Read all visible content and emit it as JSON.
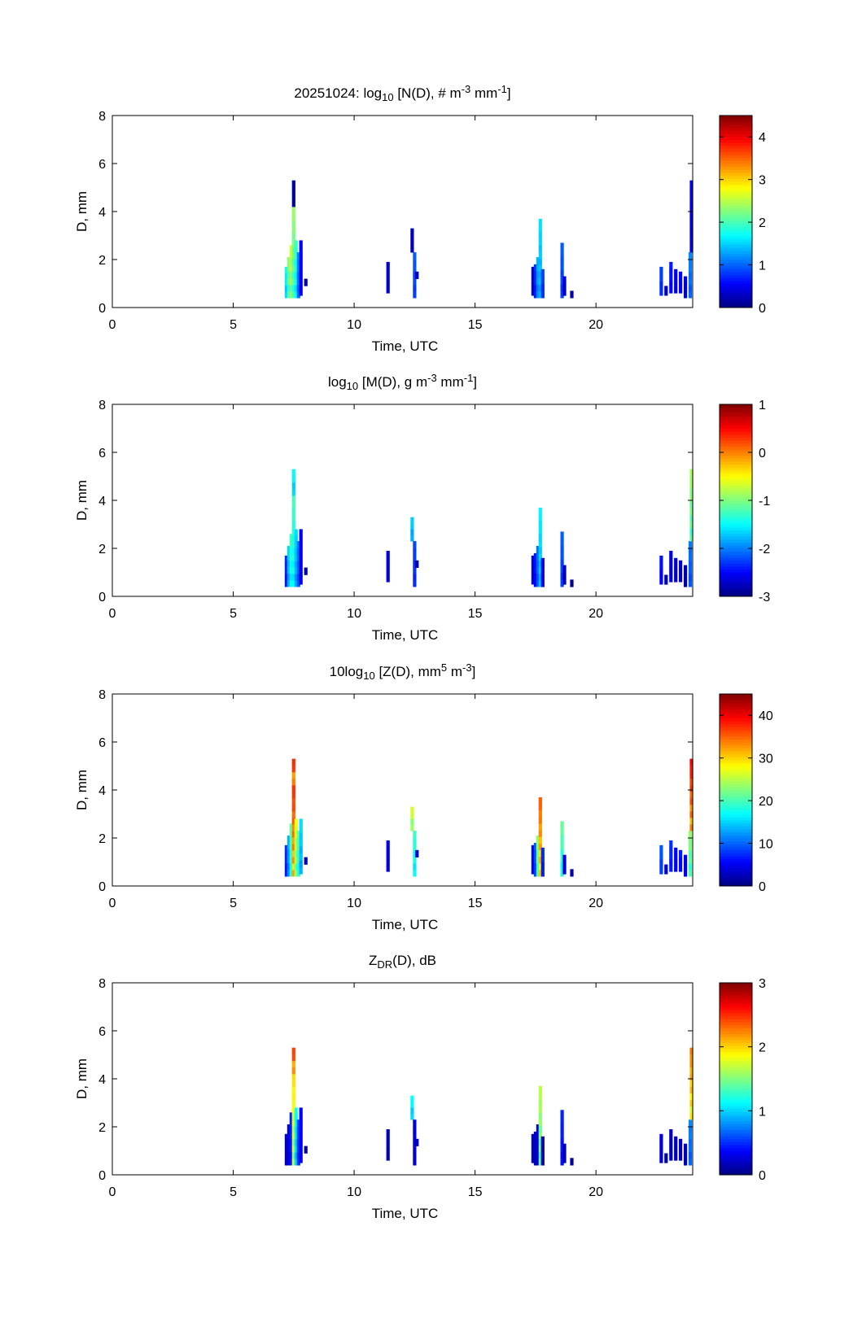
{
  "figure": {
    "background": "#ffffff"
  },
  "chart_data": [
    {
      "type": "heatmap",
      "title": {
        "parts": [
          "20251024: log",
          "10",
          " [N(D), # m",
          "-3",
          " mm",
          "-1",
          "]"
        ],
        "styles": [
          "n",
          "sub",
          "n",
          "sup",
          "n",
          "sup",
          "n"
        ]
      },
      "xlabel": "Time, UTC",
      "ylabel": "D, mm",
      "xlim": [
        0,
        24
      ],
      "ylim": [
        0,
        8
      ],
      "xticks": [
        0,
        5,
        10,
        15,
        20
      ],
      "yticks": [
        0,
        2,
        4,
        6,
        8
      ],
      "colorbar": {
        "range": [
          0,
          4.5
        ],
        "ticks": [
          0,
          1,
          2,
          3,
          4
        ]
      },
      "cells": [
        {
          "t": 7.2,
          "d0": 0.4,
          "d1": 1.7,
          "c": 1.8
        },
        {
          "t": 7.3,
          "d0": 0.4,
          "d1": 2.1,
          "c": 2.4
        },
        {
          "t": 7.4,
          "d0": 0.4,
          "d1": 2.6,
          "c": 2.7
        },
        {
          "t": 7.5,
          "d0": 0.4,
          "d1": 4.2,
          "c": 2.4
        },
        {
          "t": 7.5,
          "d0": 4.2,
          "d1": 5.3,
          "c": 0.2
        },
        {
          "t": 7.6,
          "d0": 0.4,
          "d1": 2.8,
          "c": 2.0
        },
        {
          "t": 7.7,
          "d0": 0.4,
          "d1": 2.3,
          "c": 1.2
        },
        {
          "t": 7.8,
          "d0": 0.5,
          "d1": 2.8,
          "c": 0.6
        },
        {
          "t": 8.0,
          "d0": 0.9,
          "d1": 1.2,
          "c": 0.2
        },
        {
          "t": 11.4,
          "d0": 0.6,
          "d1": 1.9,
          "c": 0.4
        },
        {
          "t": 12.4,
          "d0": 2.3,
          "d1": 3.3,
          "c": 0.3
        },
        {
          "t": 12.5,
          "d0": 0.4,
          "d1": 2.3,
          "c": 1.0
        },
        {
          "t": 12.6,
          "d0": 1.2,
          "d1": 1.5,
          "c": 0.3
        },
        {
          "t": 17.4,
          "d0": 0.5,
          "d1": 1.7,
          "c": 0.4
        },
        {
          "t": 17.5,
          "d0": 0.4,
          "d1": 1.8,
          "c": 0.8
        },
        {
          "t": 17.6,
          "d0": 0.4,
          "d1": 2.1,
          "c": 1.4
        },
        {
          "t": 17.7,
          "d0": 0.4,
          "d1": 3.7,
          "c": 1.6
        },
        {
          "t": 17.8,
          "d0": 0.4,
          "d1": 1.6,
          "c": 0.9
        },
        {
          "t": 18.6,
          "d0": 0.4,
          "d1": 2.7,
          "c": 1.0
        },
        {
          "t": 18.7,
          "d0": 0.5,
          "d1": 1.3,
          "c": 0.4
        },
        {
          "t": 19.0,
          "d0": 0.4,
          "d1": 0.7,
          "c": 0.2
        },
        {
          "t": 22.7,
          "d0": 0.5,
          "d1": 1.7,
          "c": 0.9
        },
        {
          "t": 22.9,
          "d0": 0.5,
          "d1": 0.9,
          "c": 0.3
        },
        {
          "t": 23.1,
          "d0": 0.6,
          "d1": 1.9,
          "c": 0.7
        },
        {
          "t": 23.3,
          "d0": 0.6,
          "d1": 1.6,
          "c": 0.5
        },
        {
          "t": 23.5,
          "d0": 0.6,
          "d1": 1.5,
          "c": 0.6
        },
        {
          "t": 23.7,
          "d0": 0.4,
          "d1": 1.3,
          "c": 0.4
        },
        {
          "t": 23.9,
          "d0": 0.4,
          "d1": 2.3,
          "c": 1.2
        },
        {
          "t": 23.95,
          "d0": 2.3,
          "d1": 5.3,
          "c": 0.6
        }
      ]
    },
    {
      "type": "heatmap",
      "title": {
        "parts": [
          "log",
          "10",
          " [M(D), g m",
          "-3",
          " mm",
          "-1",
          "]"
        ],
        "styles": [
          "n",
          "sub",
          "n",
          "sup",
          "n",
          "sup",
          "n"
        ]
      },
      "xlabel": "Time, UTC",
      "ylabel": "D, mm",
      "xlim": [
        0,
        24
      ],
      "ylim": [
        0,
        8
      ],
      "xticks": [
        0,
        5,
        10,
        15,
        20
      ],
      "yticks": [
        0,
        2,
        4,
        6,
        8
      ],
      "colorbar": {
        "range": [
          -3,
          1
        ],
        "ticks": [
          -3,
          -2,
          -1,
          0,
          1
        ]
      },
      "cells": [
        {
          "t": 7.2,
          "d0": 0.4,
          "d1": 1.7,
          "c": -2.3
        },
        {
          "t": 7.3,
          "d0": 0.4,
          "d1": 2.1,
          "c": -1.6
        },
        {
          "t": 7.4,
          "d0": 0.4,
          "d1": 2.6,
          "c": -1.2
        },
        {
          "t": 7.5,
          "d0": 0.4,
          "d1": 4.2,
          "c": -1.2
        },
        {
          "t": 7.5,
          "d0": 4.2,
          "d1": 5.3,
          "c": -1.4
        },
        {
          "t": 7.6,
          "d0": 0.4,
          "d1": 2.8,
          "c": -1.6
        },
        {
          "t": 7.7,
          "d0": 0.4,
          "d1": 2.3,
          "c": -2.0
        },
        {
          "t": 7.8,
          "d0": 0.5,
          "d1": 2.8,
          "c": -2.5
        },
        {
          "t": 8.0,
          "d0": 0.9,
          "d1": 1.2,
          "c": -2.8
        },
        {
          "t": 11.4,
          "d0": 0.6,
          "d1": 1.9,
          "c": -2.6
        },
        {
          "t": 12.4,
          "d0": 2.3,
          "d1": 3.3,
          "c": -1.6
        },
        {
          "t": 12.5,
          "d0": 0.4,
          "d1": 2.3,
          "c": -2.2
        },
        {
          "t": 12.6,
          "d0": 1.2,
          "d1": 1.5,
          "c": -2.8
        },
        {
          "t": 17.4,
          "d0": 0.5,
          "d1": 1.7,
          "c": -2.6
        },
        {
          "t": 17.5,
          "d0": 0.4,
          "d1": 1.8,
          "c": -2.4
        },
        {
          "t": 17.6,
          "d0": 0.4,
          "d1": 2.1,
          "c": -2.0
        },
        {
          "t": 17.7,
          "d0": 0.4,
          "d1": 3.7,
          "c": -1.5
        },
        {
          "t": 17.8,
          "d0": 0.4,
          "d1": 1.6,
          "c": -2.5
        },
        {
          "t": 18.6,
          "d0": 0.4,
          "d1": 2.7,
          "c": -2.1
        },
        {
          "t": 18.7,
          "d0": 0.5,
          "d1": 1.3,
          "c": -2.7
        },
        {
          "t": 19.0,
          "d0": 0.4,
          "d1": 0.7,
          "c": -2.9
        },
        {
          "t": 22.7,
          "d0": 0.5,
          "d1": 1.7,
          "c": -2.4
        },
        {
          "t": 22.9,
          "d0": 0.5,
          "d1": 0.9,
          "c": -2.8
        },
        {
          "t": 23.1,
          "d0": 0.6,
          "d1": 1.9,
          "c": -2.6
        },
        {
          "t": 23.3,
          "d0": 0.6,
          "d1": 1.6,
          "c": -2.7
        },
        {
          "t": 23.5,
          "d0": 0.6,
          "d1": 1.5,
          "c": -2.7
        },
        {
          "t": 23.7,
          "d0": 0.4,
          "d1": 1.3,
          "c": -2.8
        },
        {
          "t": 23.9,
          "d0": 0.4,
          "d1": 2.3,
          "c": -2.0
        },
        {
          "t": 23.95,
          "d0": 2.3,
          "d1": 5.3,
          "c": -0.8
        }
      ]
    },
    {
      "type": "heatmap",
      "title": {
        "parts": [
          "10log",
          "10",
          " [Z(D),  mm",
          "5",
          " m",
          "-3",
          "]"
        ],
        "styles": [
          "n",
          "sub",
          "n",
          "sup",
          "n",
          "sup",
          "n"
        ]
      },
      "xlabel": "Time, UTC",
      "ylabel": "D, mm",
      "xlim": [
        0,
        24
      ],
      "ylim": [
        0,
        8
      ],
      "xticks": [
        0,
        5,
        10,
        15,
        20
      ],
      "yticks": [
        0,
        2,
        4,
        6,
        8
      ],
      "colorbar": {
        "range": [
          0,
          45
        ],
        "ticks": [
          0,
          10,
          20,
          30,
          40
        ]
      },
      "cells": [
        {
          "t": 7.2,
          "d0": 0.4,
          "d1": 1.7,
          "c": 8
        },
        {
          "t": 7.3,
          "d0": 0.4,
          "d1": 2.1,
          "c": 14
        },
        {
          "t": 7.4,
          "d0": 0.4,
          "d1": 2.6,
          "c": 22
        },
        {
          "t": 7.5,
          "d0": 0.4,
          "d1": 4.2,
          "c": 38
        },
        {
          "t": 7.5,
          "d0": 4.2,
          "d1": 5.3,
          "c": 40
        },
        {
          "t": 7.6,
          "d0": 0.4,
          "d1": 2.8,
          "c": 28
        },
        {
          "t": 7.7,
          "d0": 0.4,
          "d1": 2.3,
          "c": 22
        },
        {
          "t": 7.8,
          "d0": 0.5,
          "d1": 2.8,
          "c": 16
        },
        {
          "t": 8.0,
          "d0": 0.9,
          "d1": 1.2,
          "c": 3
        },
        {
          "t": 11.4,
          "d0": 0.6,
          "d1": 1.9,
          "c": 5
        },
        {
          "t": 12.4,
          "d0": 2.3,
          "d1": 3.3,
          "c": 28
        },
        {
          "t": 12.5,
          "d0": 0.4,
          "d1": 2.3,
          "c": 20
        },
        {
          "t": 12.6,
          "d0": 1.2,
          "d1": 1.5,
          "c": 4
        },
        {
          "t": 17.4,
          "d0": 0.5,
          "d1": 1.7,
          "c": 6
        },
        {
          "t": 17.5,
          "d0": 0.4,
          "d1": 1.8,
          "c": 10
        },
        {
          "t": 17.6,
          "d0": 0.4,
          "d1": 2.1,
          "c": 24
        },
        {
          "t": 17.7,
          "d0": 0.4,
          "d1": 3.7,
          "c": 36
        },
        {
          "t": 17.8,
          "d0": 0.4,
          "d1": 1.6,
          "c": 8
        },
        {
          "t": 18.6,
          "d0": 0.4,
          "d1": 2.7,
          "c": 22
        },
        {
          "t": 18.7,
          "d0": 0.5,
          "d1": 1.3,
          "c": 5
        },
        {
          "t": 19.0,
          "d0": 0.4,
          "d1": 0.7,
          "c": 2
        },
        {
          "t": 22.7,
          "d0": 0.5,
          "d1": 1.7,
          "c": 10
        },
        {
          "t": 22.9,
          "d0": 0.5,
          "d1": 0.9,
          "c": 4
        },
        {
          "t": 23.1,
          "d0": 0.6,
          "d1": 1.9,
          "c": 8
        },
        {
          "t": 23.3,
          "d0": 0.6,
          "d1": 1.6,
          "c": 6
        },
        {
          "t": 23.5,
          "d0": 0.6,
          "d1": 1.5,
          "c": 7
        },
        {
          "t": 23.7,
          "d0": 0.4,
          "d1": 1.3,
          "c": 5
        },
        {
          "t": 23.9,
          "d0": 0.4,
          "d1": 2.3,
          "c": 24
        },
        {
          "t": 23.95,
          "d0": 2.3,
          "d1": 5.3,
          "c": 40
        }
      ]
    },
    {
      "type": "heatmap",
      "title": {
        "parts": [
          "Z",
          "DR",
          "(D), dB"
        ],
        "styles": [
          "n",
          "sub",
          "n"
        ]
      },
      "xlabel": "Time, UTC",
      "ylabel": "D, mm",
      "xlim": [
        0,
        24
      ],
      "ylim": [
        0,
        8
      ],
      "xticks": [
        0,
        5,
        10,
        15,
        20
      ],
      "yticks": [
        0,
        2,
        4,
        6,
        8
      ],
      "colorbar": {
        "range": [
          0,
          3
        ],
        "ticks": [
          0,
          1,
          2,
          3
        ]
      },
      "cells": [
        {
          "t": 7.2,
          "d0": 0.4,
          "d1": 1.7,
          "c": 0.2
        },
        {
          "t": 7.3,
          "d0": 0.4,
          "d1": 2.1,
          "c": 0.3
        },
        {
          "t": 7.4,
          "d0": 0.4,
          "d1": 2.6,
          "c": 0.5
        },
        {
          "t": 7.5,
          "d0": 0.4,
          "d1": 4.2,
          "c": 2.0
        },
        {
          "t": 7.5,
          "d0": 4.2,
          "d1": 5.3,
          "c": 2.6
        },
        {
          "t": 7.6,
          "d0": 0.4,
          "d1": 2.8,
          "c": 1.2
        },
        {
          "t": 7.7,
          "d0": 0.4,
          "d1": 2.3,
          "c": 0.6
        },
        {
          "t": 7.8,
          "d0": 0.5,
          "d1": 2.8,
          "c": 0.4
        },
        {
          "t": 8.0,
          "d0": 0.9,
          "d1": 1.2,
          "c": 0.1
        },
        {
          "t": 11.4,
          "d0": 0.6,
          "d1": 1.9,
          "c": 0.2
        },
        {
          "t": 12.4,
          "d0": 2.3,
          "d1": 3.3,
          "c": 1.2
        },
        {
          "t": 12.5,
          "d0": 0.4,
          "d1": 2.3,
          "c": 0.3
        },
        {
          "t": 12.6,
          "d0": 1.2,
          "d1": 1.5,
          "c": 0.2
        },
        {
          "t": 17.4,
          "d0": 0.5,
          "d1": 1.7,
          "c": 0.2
        },
        {
          "t": 17.5,
          "d0": 0.4,
          "d1": 1.8,
          "c": 0.2
        },
        {
          "t": 17.6,
          "d0": 0.4,
          "d1": 2.1,
          "c": 0.3
        },
        {
          "t": 17.7,
          "d0": 0.4,
          "d1": 3.7,
          "c": 1.7
        },
        {
          "t": 17.8,
          "d0": 0.4,
          "d1": 1.6,
          "c": 0.2
        },
        {
          "t": 18.6,
          "d0": 0.4,
          "d1": 2.7,
          "c": 0.5
        },
        {
          "t": 18.7,
          "d0": 0.5,
          "d1": 1.3,
          "c": 0.2
        },
        {
          "t": 19.0,
          "d0": 0.4,
          "d1": 0.7,
          "c": 0.1
        },
        {
          "t": 22.7,
          "d0": 0.5,
          "d1": 1.7,
          "c": 0.3
        },
        {
          "t": 22.9,
          "d0": 0.5,
          "d1": 0.9,
          "c": 0.1
        },
        {
          "t": 23.1,
          "d0": 0.6,
          "d1": 1.9,
          "c": 0.2
        },
        {
          "t": 23.3,
          "d0": 0.6,
          "d1": 1.6,
          "c": 0.2
        },
        {
          "t": 23.5,
          "d0": 0.6,
          "d1": 1.5,
          "c": 0.2
        },
        {
          "t": 23.7,
          "d0": 0.4,
          "d1": 1.3,
          "c": 0.2
        },
        {
          "t": 23.9,
          "d0": 0.4,
          "d1": 2.3,
          "c": 0.8
        },
        {
          "t": 23.95,
          "d0": 2.3,
          "d1": 5.3,
          "c": 2.3
        }
      ]
    }
  ]
}
